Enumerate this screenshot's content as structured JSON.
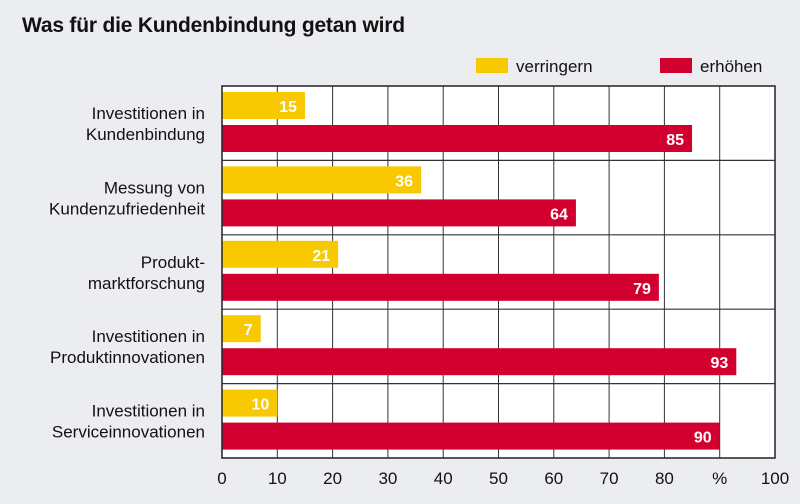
{
  "chart_data": {
    "type": "bar",
    "orientation": "horizontal",
    "title": "Was für die Kundenbindung getan wird",
    "categories": [
      [
        "Investitionen in",
        "Kundenbindung"
      ],
      [
        "Messung von",
        "Kundenzufriedenheit"
      ],
      [
        "Produkt-",
        "marktforschung"
      ],
      [
        "Investitionen in",
        "Produktinnovationen"
      ],
      [
        "Investitionen in",
        "Serviceinnovationen"
      ]
    ],
    "series": [
      {
        "name": "verringern",
        "color": "#f8c800",
        "values": [
          15,
          36,
          21,
          7,
          10
        ]
      },
      {
        "name": "erhöhen",
        "color": "#d2002e",
        "values": [
          85,
          64,
          79,
          93,
          90
        ]
      }
    ],
    "xlim": [
      0,
      100
    ],
    "xticks": [
      "0",
      "10",
      "20",
      "30",
      "40",
      "50",
      "60",
      "70",
      "80",
      "%",
      "100"
    ],
    "grid": true,
    "legend": "top-right"
  }
}
